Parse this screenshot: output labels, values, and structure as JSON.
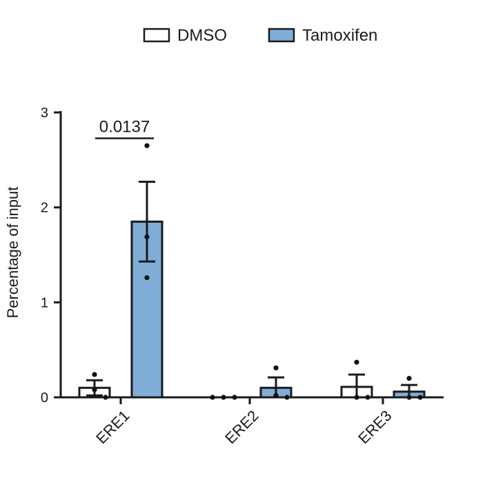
{
  "chart_data": {
    "type": "bar",
    "ylabel": "Percentage of input",
    "categories": [
      "ERE1",
      "ERE2",
      "ERE3"
    ],
    "ylim": [
      0,
      3
    ],
    "yticks": [
      0,
      1,
      2,
      3
    ],
    "grid": false,
    "legend_position": "top",
    "series": [
      {
        "name": "DMSO",
        "color": "#ffffff",
        "values": [
          0.1,
          0.0,
          0.11
        ],
        "sem": [
          0.08,
          0.0,
          0.13
        ],
        "points": [
          [
            0.24,
            0.08,
            0.0
          ],
          [
            0.0,
            0.0,
            0.0
          ],
          [
            0.37,
            0.0,
            0.0
          ]
        ]
      },
      {
        "name": "Tamoxifen",
        "color": "#7fadd7",
        "values": [
          1.85,
          0.1,
          0.06
        ],
        "sem": [
          0.42,
          0.11,
          0.07
        ],
        "points": [
          [
            2.65,
            1.69,
            1.26
          ],
          [
            0.31,
            0.02,
            0.0
          ],
          [
            0.2,
            0.0,
            0.0
          ]
        ]
      }
    ],
    "annotations": [
      {
        "text": "0.0137",
        "category": "ERE1",
        "y": 2.8
      }
    ]
  }
}
